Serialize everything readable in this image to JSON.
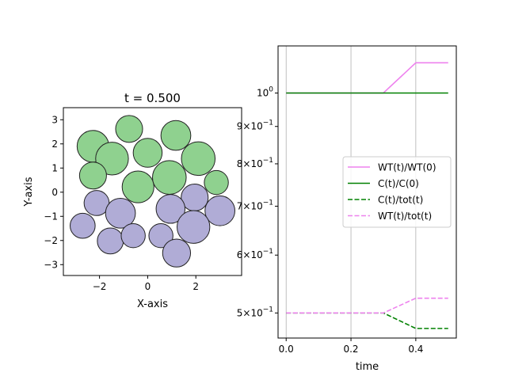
{
  "chart_data": [
    {
      "type": "scatter",
      "title": "t = 0.500",
      "xlabel": "X-axis",
      "ylabel": "Y-axis",
      "xlim": [
        -3.5,
        3.9
      ],
      "ylim": [
        -3.45,
        3.5
      ],
      "xticks": [
        -2,
        0,
        2
      ],
      "xtick_labels": [
        "−2",
        "0",
        "2"
      ],
      "yticks": [
        -3,
        -2,
        -1,
        0,
        1,
        2,
        3
      ],
      "ytick_labels": [
        "−3",
        "−2",
        "−1",
        "0",
        "1",
        "2",
        "3"
      ],
      "colors": {
        "green": "#8fd18f",
        "purple": "#b0acd6",
        "edge": "#222222"
      },
      "series": [
        {
          "color_key": "green",
          "points": [
            {
              "x": -2.27,
              "y": 1.9,
              "r": 0.66
            },
            {
              "x": -0.77,
              "y": 2.62,
              "r": 0.56
            },
            {
              "x": 1.17,
              "y": 2.35,
              "r": 0.62
            },
            {
              "x": -1.48,
              "y": 1.39,
              "r": 0.68
            },
            {
              "x": 0.0,
              "y": 1.63,
              "r": 0.6
            },
            {
              "x": 2.1,
              "y": 1.39,
              "r": 0.7
            },
            {
              "x": -2.27,
              "y": 0.69,
              "r": 0.56
            },
            {
              "x": -0.4,
              "y": 0.22,
              "r": 0.66
            },
            {
              "x": 0.9,
              "y": 0.61,
              "r": 0.7
            },
            {
              "x": 2.85,
              "y": 0.4,
              "r": 0.5
            }
          ]
        },
        {
          "color_key": "purple",
          "points": [
            {
              "x": -2.12,
              "y": -0.45,
              "r": 0.52
            },
            {
              "x": -1.13,
              "y": -0.87,
              "r": 0.62
            },
            {
              "x": 1.95,
              "y": -0.22,
              "r": 0.56
            },
            {
              "x": 0.95,
              "y": -0.69,
              "r": 0.6
            },
            {
              "x": 3.0,
              "y": -0.77,
              "r": 0.62
            },
            {
              "x": -2.7,
              "y": -1.39,
              "r": 0.52
            },
            {
              "x": -1.55,
              "y": -2.02,
              "r": 0.54
            },
            {
              "x": -0.6,
              "y": -1.8,
              "r": 0.5
            },
            {
              "x": 0.55,
              "y": -1.8,
              "r": 0.5
            },
            {
              "x": 1.9,
              "y": -1.44,
              "r": 0.68
            },
            {
              "x": 1.2,
              "y": -2.52,
              "r": 0.58
            }
          ]
        }
      ]
    },
    {
      "type": "line",
      "xlabel": "time",
      "ylabel": "",
      "yscale": "log",
      "xlim": [
        -0.025,
        0.525
      ],
      "ylim": [
        0.462,
        1.16
      ],
      "grid": "x",
      "legend": "center-right",
      "xticks": [
        0.0,
        0.2,
        0.4
      ],
      "xtick_labels": [
        "0.0",
        "0.2",
        "0.4"
      ],
      "yticks": [
        {
          "value": 1.0,
          "base": "10",
          "exp": "0"
        },
        {
          "value": 0.9,
          "base": "9×10",
          "exp": "−1"
        },
        {
          "value": 0.8,
          "base": "8×10",
          "exp": "−1"
        },
        {
          "value": 0.7,
          "base": "7×10",
          "exp": "−1"
        },
        {
          "value": 0.6,
          "base": "6×10",
          "exp": "−1"
        },
        {
          "value": 0.5,
          "base": "5×10",
          "exp": "−1"
        }
      ],
      "x": [
        0.0,
        0.1,
        0.2,
        0.3,
        0.4,
        0.5
      ],
      "series": [
        {
          "name": "WT(t)/WT(0)",
          "color": "#ee82ee",
          "dash": "solid",
          "values": [
            1.0,
            1.0,
            1.0,
            1.0,
            1.1,
            1.1
          ]
        },
        {
          "name": "C(t)/C(0)",
          "color": "#008000",
          "dash": "solid",
          "values": [
            1.0,
            1.0,
            1.0,
            1.0,
            1.0,
            1.0
          ]
        },
        {
          "name": "C(t)/tot(t)",
          "color": "#008000",
          "dash": "dashed",
          "values": [
            0.5,
            0.5,
            0.5,
            0.5,
            0.4762,
            0.4762
          ]
        },
        {
          "name": "WT(t)/tot(t)",
          "color": "#ee82ee",
          "dash": "dashed",
          "values": [
            0.5,
            0.5,
            0.5,
            0.5,
            0.5238,
            0.5238
          ]
        }
      ]
    }
  ]
}
